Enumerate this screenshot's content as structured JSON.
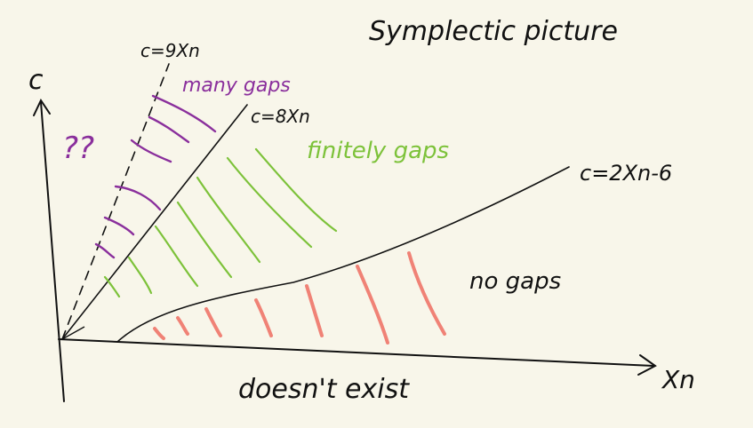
{
  "title": "Symplectic picture",
  "axes": {
    "y_label": "c",
    "x_label": "Xn"
  },
  "lines": {
    "c9": "c=9Xn",
    "c8": "c=8Xn",
    "c2": "c=2Xn-6"
  },
  "regions": {
    "unknown": "??",
    "many": "many gaps",
    "finitely": "finitely gaps",
    "none": "no gaps",
    "below": "doesn't exist"
  },
  "colors": {
    "ink": "#111111",
    "purple": "#8a2f9c",
    "green": "#7dc23a",
    "red": "#f08276",
    "background": "#f8f6ea"
  }
}
